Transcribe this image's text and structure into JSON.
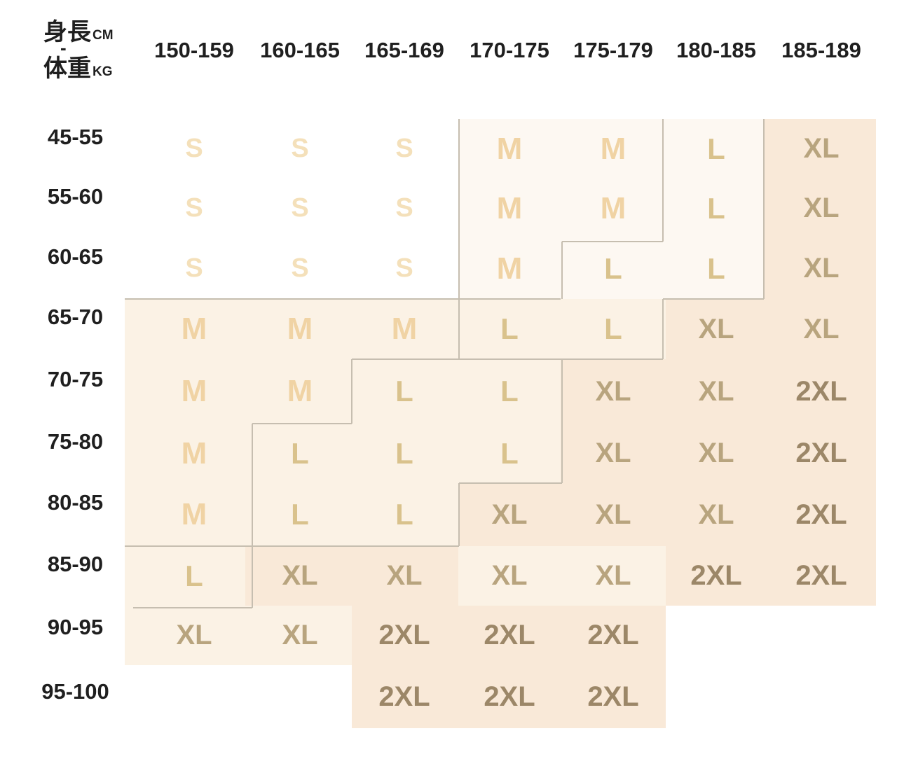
{
  "chart_data": {
    "type": "table",
    "x_axis": {
      "label": "身長",
      "unit": "CM"
    },
    "y_axis": {
      "label": "体重",
      "unit": "KG"
    },
    "legend_separator": "-",
    "columns": [
      "150-159",
      "160-165",
      "165-169",
      "170-175",
      "175-179",
      "180-185",
      "185-189"
    ],
    "row_labels": [
      "45-55",
      "55-60",
      "60-65",
      "65-70",
      "70-75",
      "75-80",
      "80-85",
      "85-90",
      "90-95",
      "95-100"
    ],
    "values": [
      [
        "S",
        "S",
        "S",
        "M",
        "M",
        "L",
        "XL"
      ],
      [
        "S",
        "S",
        "S",
        "M",
        "M",
        "L",
        "XL"
      ],
      [
        "S",
        "S",
        "S",
        "M",
        "L",
        "L",
        "XL"
      ],
      [
        "M",
        "M",
        "M",
        "L",
        "L",
        "XL",
        "XL"
      ],
      [
        "M",
        "M",
        "L",
        "L",
        "XL",
        "XL",
        "2XL"
      ],
      [
        "M",
        "L",
        "L",
        "L",
        "XL",
        "XL",
        "2XL"
      ],
      [
        "M",
        "L",
        "L",
        "XL",
        "XL",
        "XL",
        "2XL"
      ],
      [
        "L",
        "XL",
        "XL",
        "XL",
        "XL",
        "2XL",
        "2XL"
      ],
      [
        "XL",
        "XL",
        "2XL",
        "2XL",
        "2XL",
        "",
        ""
      ],
      [
        "",
        "",
        "2XL",
        "2XL",
        "2XL",
        "",
        ""
      ]
    ],
    "cell_bg_levels": [
      [
        0,
        0,
        0,
        1,
        1,
        1,
        3
      ],
      [
        0,
        0,
        0,
        1,
        1,
        1,
        3
      ],
      [
        0,
        0,
        0,
        1,
        1,
        1,
        3
      ],
      [
        2,
        2,
        2,
        2,
        2,
        3,
        3
      ],
      [
        2,
        2,
        2,
        2,
        3,
        3,
        3
      ],
      [
        2,
        2,
        2,
        2,
        3,
        3,
        3
      ],
      [
        2,
        2,
        2,
        3,
        3,
        3,
        3
      ],
      [
        2,
        3,
        3,
        2,
        2,
        3,
        3
      ],
      [
        2,
        2,
        3,
        3,
        3,
        0,
        0
      ],
      [
        0,
        0,
        3,
        3,
        3,
        0,
        0
      ]
    ]
  },
  "colors": {
    "size_S": "#f4e0ba",
    "size_M": "#f0d3a4",
    "size_L": "#d9c28c",
    "size_XL": "#b8a47e",
    "size_2XL": "#9c8768",
    "bg_level_1": "#fdf8f2",
    "bg_level_2": "#fbf2e5",
    "bg_level_3": "#f9e9d8",
    "boundary_line": "#c6beb0",
    "label_text": "#1f1f1f",
    "page_bg": "#ffffff"
  }
}
